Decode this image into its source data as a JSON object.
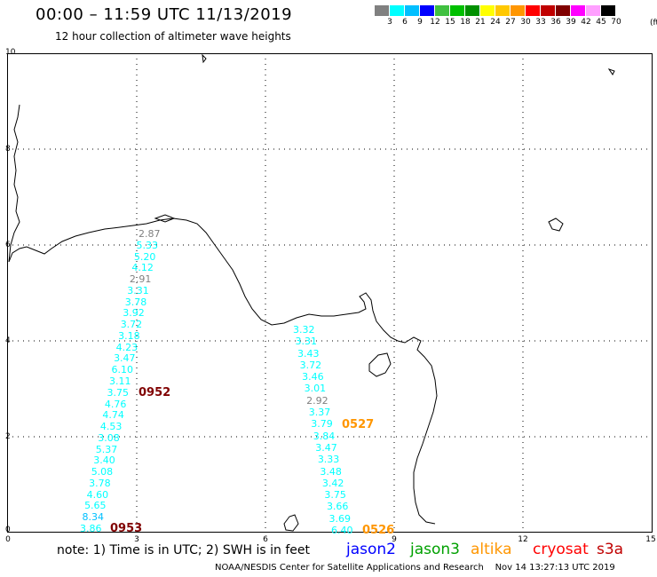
{
  "header": {
    "title": "00:00 – 11:59 UTC 11/13/2019",
    "subtitle": "12 hour collection of altimeter wave heights"
  },
  "legend": {
    "unit": "(ft)",
    "colors": [
      "#808080",
      "#00ffff",
      "#00bfff",
      "#0000ff",
      "#40c040",
      "#00c000",
      "#009000",
      "#ffff00",
      "#ffc800",
      "#ff9600",
      "#ff0000",
      "#c00000",
      "#800000",
      "#ff00ff",
      "#ffa0ff",
      "#000000"
    ],
    "labels": [
      "3",
      "6",
      "9",
      "12",
      "15",
      "18",
      "21",
      "24",
      "27",
      "30",
      "33",
      "36",
      "39",
      "42",
      "45",
      "70"
    ]
  },
  "axes": {
    "y_ticks": [
      "10",
      "8",
      "6",
      "4",
      "2",
      "0"
    ],
    "x_ticks": [
      "0",
      "3",
      "6",
      "9",
      "12",
      "15"
    ]
  },
  "tracks": [
    {
      "name": "track-west",
      "values": [
        "2.87",
        "5.33",
        "5.20",
        "4.12",
        "2.91",
        "3.31",
        "3.78",
        "3.92",
        "3.72",
        "3.18",
        "4.23",
        "3.47",
        "6.10",
        "3.11",
        "3.75",
        "4.76",
        "4.74",
        "4.53",
        "3.08",
        "5.37",
        "3.40",
        "5.08",
        "3.78",
        "4.60",
        "5.65",
        "8.34",
        "3.86"
      ],
      "colors": [
        "#808080",
        "#00ffff",
        "#00ffff",
        "#00ffff",
        "#808080",
        "#00ffff",
        "#00ffff",
        "#00ffff",
        "#00ffff",
        "#00ffff",
        "#00ffff",
        "#00ffff",
        "#00ffff",
        "#00ffff",
        "#00ffff",
        "#00ffff",
        "#00ffff",
        "#00ffff",
        "#00ffff",
        "#00ffff",
        "#00ffff",
        "#00ffff",
        "#00ffff",
        "#00ffff",
        "#00ffff",
        "#00bfff",
        "#00ffff"
      ]
    },
    {
      "name": "track-east",
      "values": [
        "3.32",
        "3.31",
        "3.43",
        "3.72",
        "3.46",
        "3.01",
        "2.92",
        "3.37",
        "3.79",
        "3.84",
        "3.47",
        "3.33",
        "3.48",
        "3.42",
        "3.75",
        "3.66",
        "3.69",
        "6.40"
      ],
      "colors": [
        "#00ffff",
        "#00ffff",
        "#00ffff",
        "#00ffff",
        "#00ffff",
        "#00ffff",
        "#808080",
        "#00ffff",
        "#00ffff",
        "#00ffff",
        "#00ffff",
        "#00ffff",
        "#00ffff",
        "#00ffff",
        "#00ffff",
        "#00ffff",
        "#00ffff",
        "#00ffff"
      ]
    }
  ],
  "pass_times": [
    {
      "label": "0952",
      "color": "#800000"
    },
    {
      "label": "0953",
      "color": "#800000"
    },
    {
      "label": "0527",
      "color": "#ff9600"
    },
    {
      "label": "0526",
      "color": "#ff9600"
    }
  ],
  "footer": {
    "note": "note:  1) Time is in UTC;  2) SWH is in feet",
    "satellites": [
      {
        "name": "jason2",
        "color": "#0000ff"
      },
      {
        "name": "jason3",
        "color": "#00a000"
      },
      {
        "name": "altika",
        "color": "#ff9600"
      },
      {
        "name": "cryosat",
        "color": "#ff0000"
      },
      {
        "name": "s3a",
        "color": "#c00000"
      }
    ],
    "credit": "NOAA/NESDIS Center for Satellite Applications and Research    Nov 14 13:27:13 UTC 2019"
  }
}
